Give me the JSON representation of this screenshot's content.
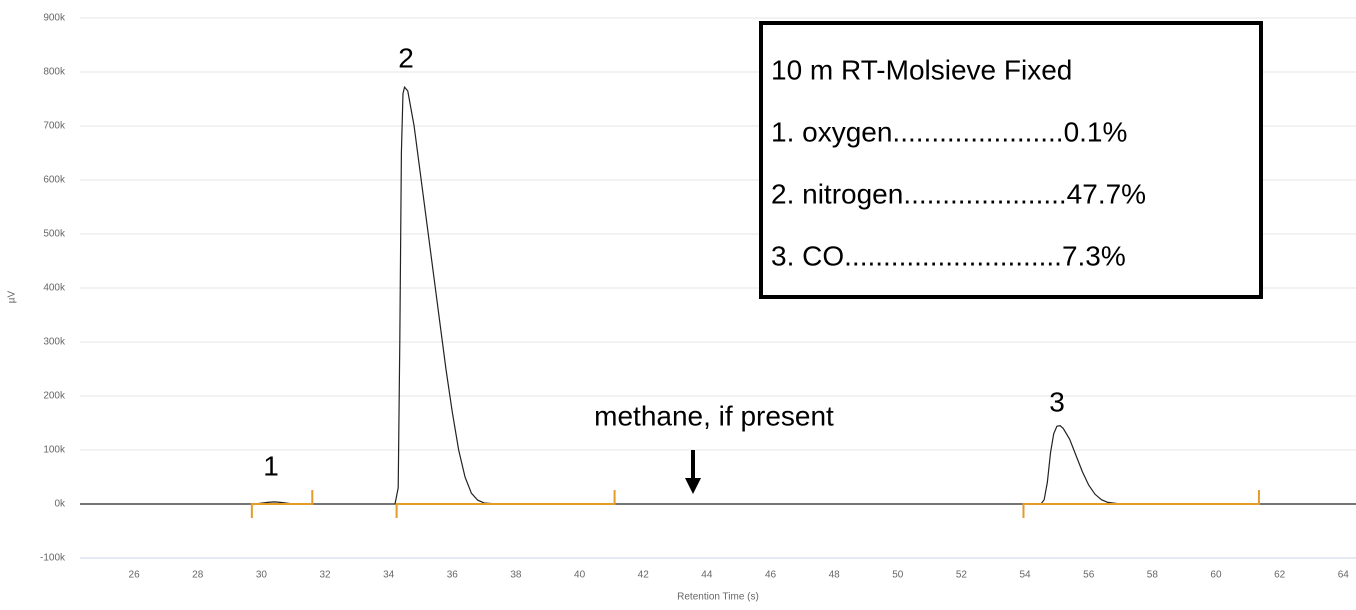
{
  "chart_data": {
    "type": "line",
    "x_label": "Retention Time (s)",
    "y_label": "µV",
    "color": "#222222",
    "x": [
      24.3,
      29.8,
      30.2,
      30.4,
      30.6,
      31.0,
      34.2,
      34.3,
      34.35,
      34.4,
      34.45,
      34.5,
      34.6,
      34.8,
      35.0,
      35.2,
      35.4,
      35.6,
      35.8,
      36.0,
      36.2,
      36.4,
      36.6,
      36.8,
      37.0,
      37.4,
      54.5,
      54.6,
      54.7,
      54.8,
      54.9,
      55.0,
      55.1,
      55.2,
      55.4,
      55.6,
      55.8,
      56.0,
      56.2,
      56.4,
      56.6,
      57.0,
      64.4
    ],
    "values": [
      0,
      0,
      3000,
      4000,
      3000,
      0,
      0,
      30000,
      300000,
      650000,
      760000,
      772000,
      765000,
      700000,
      610000,
      520000,
      430000,
      340000,
      250000,
      170000,
      100000,
      50000,
      20000,
      7000,
      2000,
      0,
      0,
      8000,
      40000,
      95000,
      130000,
      144000,
      145000,
      140000,
      120000,
      90000,
      60000,
      35000,
      18000,
      8000,
      3000,
      0,
      0
    ],
    "xlim": [
      24.3,
      64.4
    ],
    "xticks": [
      26,
      28,
      30,
      32,
      34,
      36,
      38,
      40,
      42,
      44,
      46,
      48,
      50,
      52,
      54,
      56,
      58,
      60,
      62,
      64
    ],
    "ylim": [
      -100000,
      900000
    ],
    "yticks": [
      {
        "value": -100000,
        "label": "-100k"
      },
      {
        "value": 0,
        "label": "0k"
      },
      {
        "value": 100000,
        "label": "100k"
      },
      {
        "value": 200000,
        "label": "200k"
      },
      {
        "value": 300000,
        "label": "300k"
      },
      {
        "value": 400000,
        "label": "400k"
      },
      {
        "value": 500000,
        "label": "500k"
      },
      {
        "value": 600000,
        "label": "600k"
      },
      {
        "value": 700000,
        "label": "700k"
      },
      {
        "value": 800000,
        "label": "800k"
      },
      {
        "value": 900000,
        "label": "900k"
      }
    ],
    "grid": true,
    "integration_baselines": [
      [
        29.7,
        31.6
      ],
      [
        34.25,
        41.1
      ],
      [
        53.95,
        61.35
      ]
    ],
    "baseline_color": "#e39b2a",
    "peak_labels": [
      "1",
      "2",
      "3"
    ],
    "arrow_annotation": "methane, if present",
    "legend_box": [
      "10 m RT-Molsieve Fixed",
      "1. oxygen......................0.1%",
      "2. nitrogen.....................47.7%",
      "3. CO............................7.3%"
    ]
  }
}
